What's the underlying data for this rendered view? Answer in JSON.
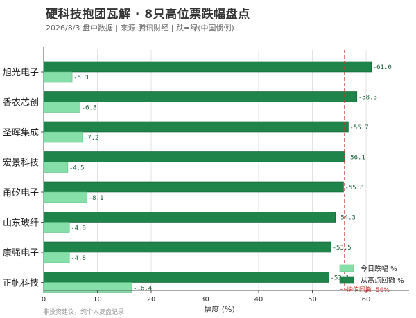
{
  "chart_data": {
    "type": "bar",
    "orientation": "horizontal",
    "title": "硬科技抱团瓦解 · 8只高位票跌幅盘点",
    "subtitle": "2026/8/3 盘中数据 | 来源:腾讯财经 | 跌=绿(中国惯例)",
    "footnote": "非投资建议，纯个人复盘记录",
    "xlabel": "幅度 (%)",
    "xlim": [
      0,
      68
    ],
    "xticks": [
      0,
      10,
      20,
      30,
      40,
      50,
      60
    ],
    "grid": true,
    "categories": [
      "旭光电子",
      "香农芯创",
      "圣晖集成",
      "宏景科技",
      "甬矽电子",
      "山东玻纤",
      "康强电子",
      "正帆科技"
    ],
    "series": [
      {
        "name": "今日跌幅 %",
        "color": "#86dfa9",
        "values": [
          5.3,
          6.8,
          7.2,
          4.5,
          8.1,
          4.8,
          4.8,
          16.4
        ]
      },
      {
        "name": "从高点回撤 %",
        "color": "#1e8449",
        "values": [
          61.0,
          58.3,
          56.7,
          56.1,
          55.8,
          54.3,
          53.5,
          53.1
        ]
      }
    ],
    "value_labels": {
      "today": [
        "-5.3",
        "-6.8",
        "-7.2",
        "-4.5",
        "-8.1",
        "-4.8",
        "-4.8",
        "-16.4"
      ],
      "drawdown": [
        "-61.0",
        "-58.3",
        "-56.7",
        "-56.1",
        "-55.8",
        "-54.3",
        "-53.5",
        "-53.1"
      ]
    },
    "reference_line": {
      "value": 56,
      "label": "均值回撤 -56%",
      "color": "#c0392b",
      "style": "dashed"
    },
    "legend": {
      "position": "bottom-right"
    }
  }
}
